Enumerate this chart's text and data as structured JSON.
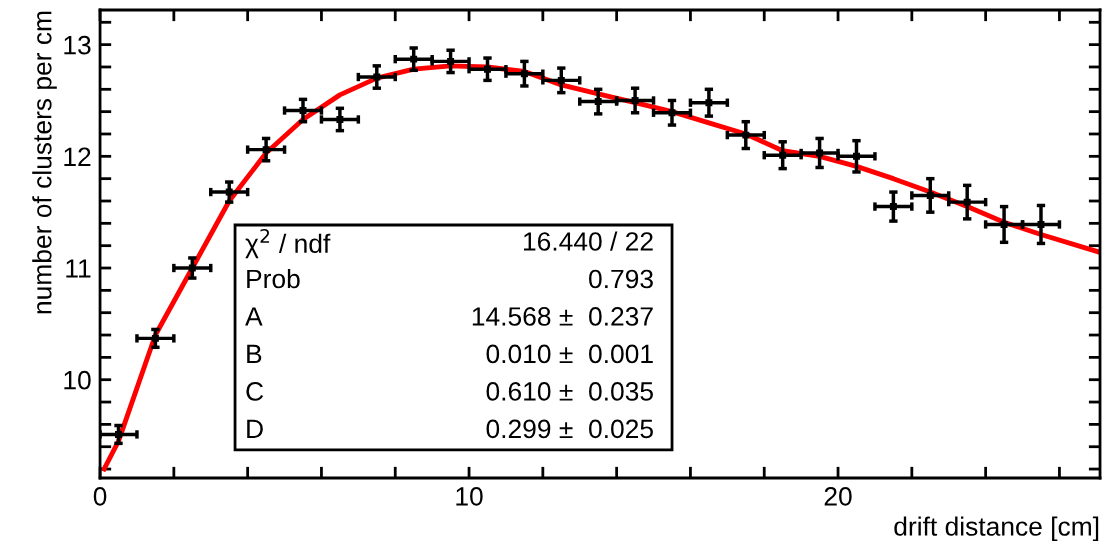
{
  "chart_data": {
    "type": "scatter",
    "xlabel": "drift distance [cm]",
    "ylabel": "number of clusters per cm",
    "xlim": [
      0,
      27.1
    ],
    "ylim": [
      9.12,
      13.31
    ],
    "xticks": [
      0,
      {
        "value": 2,
        "label": null
      },
      {
        "value": 4,
        "label": null
      },
      {
        "value": 6,
        "label": null
      },
      {
        "value": 8,
        "label": null
      },
      10,
      {
        "value": 12,
        "label": null
      },
      {
        "value": 14,
        "label": null
      },
      {
        "value": 16,
        "label": null
      },
      {
        "value": 18,
        "label": null
      },
      20,
      {
        "value": 22,
        "label": null
      },
      {
        "value": 24,
        "label": null
      },
      {
        "value": 26,
        "label": null
      }
    ],
    "yticks": [
      {
        "value": 9.2,
        "label": null
      },
      {
        "value": 9.4,
        "label": null
      },
      {
        "value": 9.6,
        "label": null
      },
      {
        "value": 9.8,
        "label": null
      },
      10,
      {
        "value": 10.2,
        "label": null
      },
      {
        "value": 10.4,
        "label": null
      },
      {
        "value": 10.6,
        "label": null
      },
      {
        "value": 10.8,
        "label": null
      },
      11,
      {
        "value": 11.2,
        "label": null
      },
      {
        "value": 11.4,
        "label": null
      },
      {
        "value": 11.6,
        "label": null
      },
      {
        "value": 11.8,
        "label": null
      },
      12,
      {
        "value": 12.2,
        "label": null
      },
      {
        "value": 12.4,
        "label": null
      },
      {
        "value": 12.6,
        "label": null
      },
      {
        "value": 12.8,
        "label": null
      },
      13,
      {
        "value": 13.2,
        "label": null
      }
    ],
    "grid": false,
    "series": [
      {
        "color": "#000000",
        "marker": "square",
        "x": [
          0.5,
          1.5,
          2.5,
          3.5,
          4.5,
          5.5,
          6.5,
          7.5,
          8.5,
          9.5,
          10.5,
          11.5,
          12.5,
          13.5,
          14.5,
          15.5,
          16.5,
          17.5,
          18.5,
          19.5,
          20.5,
          21.5,
          22.5,
          23.5,
          24.5,
          25.5
        ],
        "values": [
          9.51,
          10.37,
          11.0,
          11.68,
          12.06,
          12.41,
          12.33,
          12.71,
          12.87,
          12.85,
          12.78,
          12.74,
          12.68,
          12.49,
          12.5,
          12.39,
          12.48,
          12.19,
          12.01,
          12.03,
          12.0,
          11.55,
          11.65,
          11.59,
          11.39,
          11.39
        ],
        "errors": [
          0.08,
          0.08,
          0.09,
          0.09,
          0.1,
          0.1,
          0.1,
          0.1,
          0.1,
          0.1,
          0.1,
          0.11,
          0.11,
          0.11,
          0.11,
          0.11,
          0.12,
          0.12,
          0.12,
          0.13,
          0.14,
          0.13,
          0.15,
          0.15,
          0.16,
          0.17
        ],
        "xerrors": [
          0.5,
          0.5,
          0.5,
          0.5,
          0.5,
          0.5,
          0.5,
          0.5,
          0.5,
          0.5,
          0.5,
          0.5,
          0.5,
          0.5,
          0.5,
          0.5,
          0.5,
          0.5,
          0.5,
          0.5,
          0.5,
          0.5,
          0.5,
          0.5,
          0.5,
          0.5
        ]
      },
      {
        "type": "line",
        "color": "#ff0000",
        "line_style": "solid",
        "marker": "none",
        "x": [
          0.11,
          0.5,
          1.5,
          2.5,
          3.5,
          4.5,
          5.5,
          6.5,
          7.5,
          8.5,
          9.5,
          10.5,
          11.5,
          12.5,
          13.5,
          14.5,
          15.5,
          16.5,
          17.5,
          18.5,
          19.5,
          20.5,
          21.5,
          22.5,
          23.5,
          24.5,
          25.5,
          27.1
        ],
        "values": [
          9.2,
          9.45,
          10.4,
          11.0,
          11.6,
          12.03,
          12.33,
          12.55,
          12.7,
          12.78,
          12.81,
          12.8,
          12.76,
          12.64,
          12.56,
          12.48,
          12.4,
          12.3,
          12.2,
          12.05,
          12.0,
          11.91,
          11.8,
          11.68,
          11.55,
          11.41,
          11.3,
          11.14
        ]
      }
    ],
    "annotations": [
      "χ$^{2}$ / ndf",
      "16.440 / 22",
      "Prob",
      "0.793",
      "A",
      "14.568 ±  0.237",
      "B",
      "0.010 ±  0.001",
      "C",
      "0.610 ±  0.035",
      "D",
      "0.299 ±  0.025"
    ]
  }
}
